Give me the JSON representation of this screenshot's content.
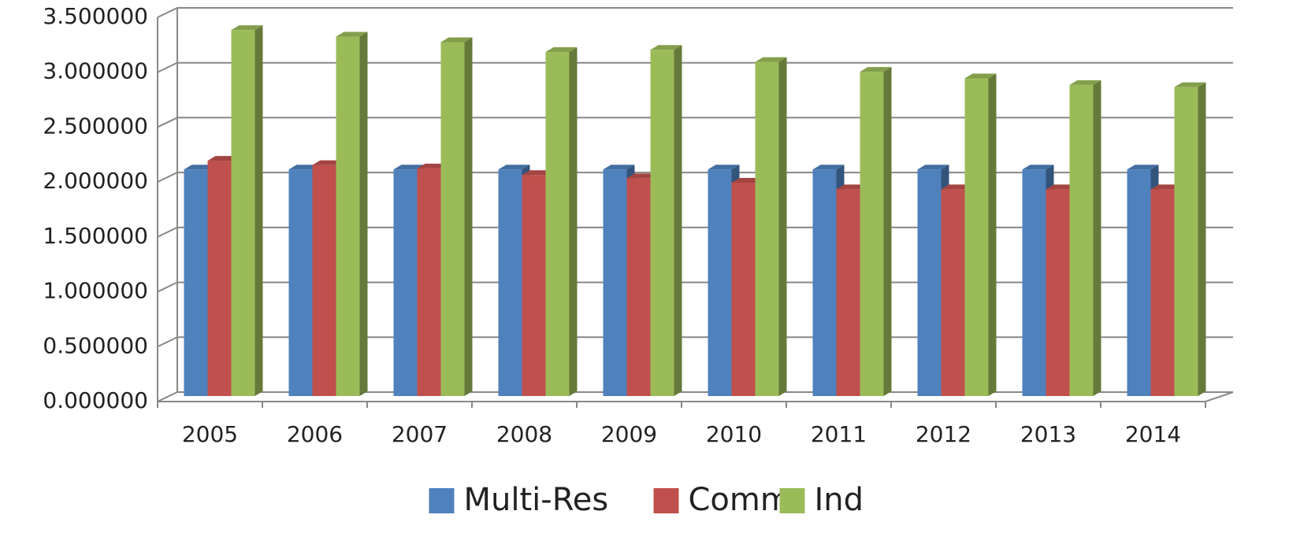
{
  "chart_data": {
    "type": "bar3d",
    "categories": [
      "2005",
      "2006",
      "2007",
      "2008",
      "2009",
      "2010",
      "2011",
      "2012",
      "2013",
      "2014"
    ],
    "series": [
      {
        "name": "Multi-Res",
        "color": "#4f81bd",
        "values": [
          2.15,
          2.15,
          2.15,
          2.15,
          2.15,
          2.15,
          2.15,
          2.15,
          2.15,
          2.15
        ]
      },
      {
        "name": "Comm",
        "color": "#c0504d",
        "values": [
          2.23,
          2.19,
          2.16,
          2.1,
          2.07,
          2.03,
          1.97,
          1.97,
          1.97,
          1.97
        ]
      },
      {
        "name": "Ind",
        "color": "#9bbb59",
        "values": [
          3.42,
          3.36,
          3.31,
          3.22,
          3.24,
          3.13,
          3.04,
          2.98,
          2.92,
          2.9
        ]
      }
    ],
    "ylim": [
      0,
      3.5
    ],
    "yticks": [
      {
        "value": 0,
        "label": "0.000000"
      },
      {
        "value": 0.5,
        "label": "0.500000"
      },
      {
        "value": 1,
        "label": "1.000000"
      },
      {
        "value": 1.5,
        "label": "1.500000"
      },
      {
        "value": 2,
        "label": "2.000000"
      },
      {
        "value": 2.5,
        "label": "2.500000"
      },
      {
        "value": 3,
        "label": "3.000000"
      },
      {
        "value": 3.5,
        "label": "3.500000"
      }
    ],
    "grid": true,
    "legend": "bottom"
  }
}
